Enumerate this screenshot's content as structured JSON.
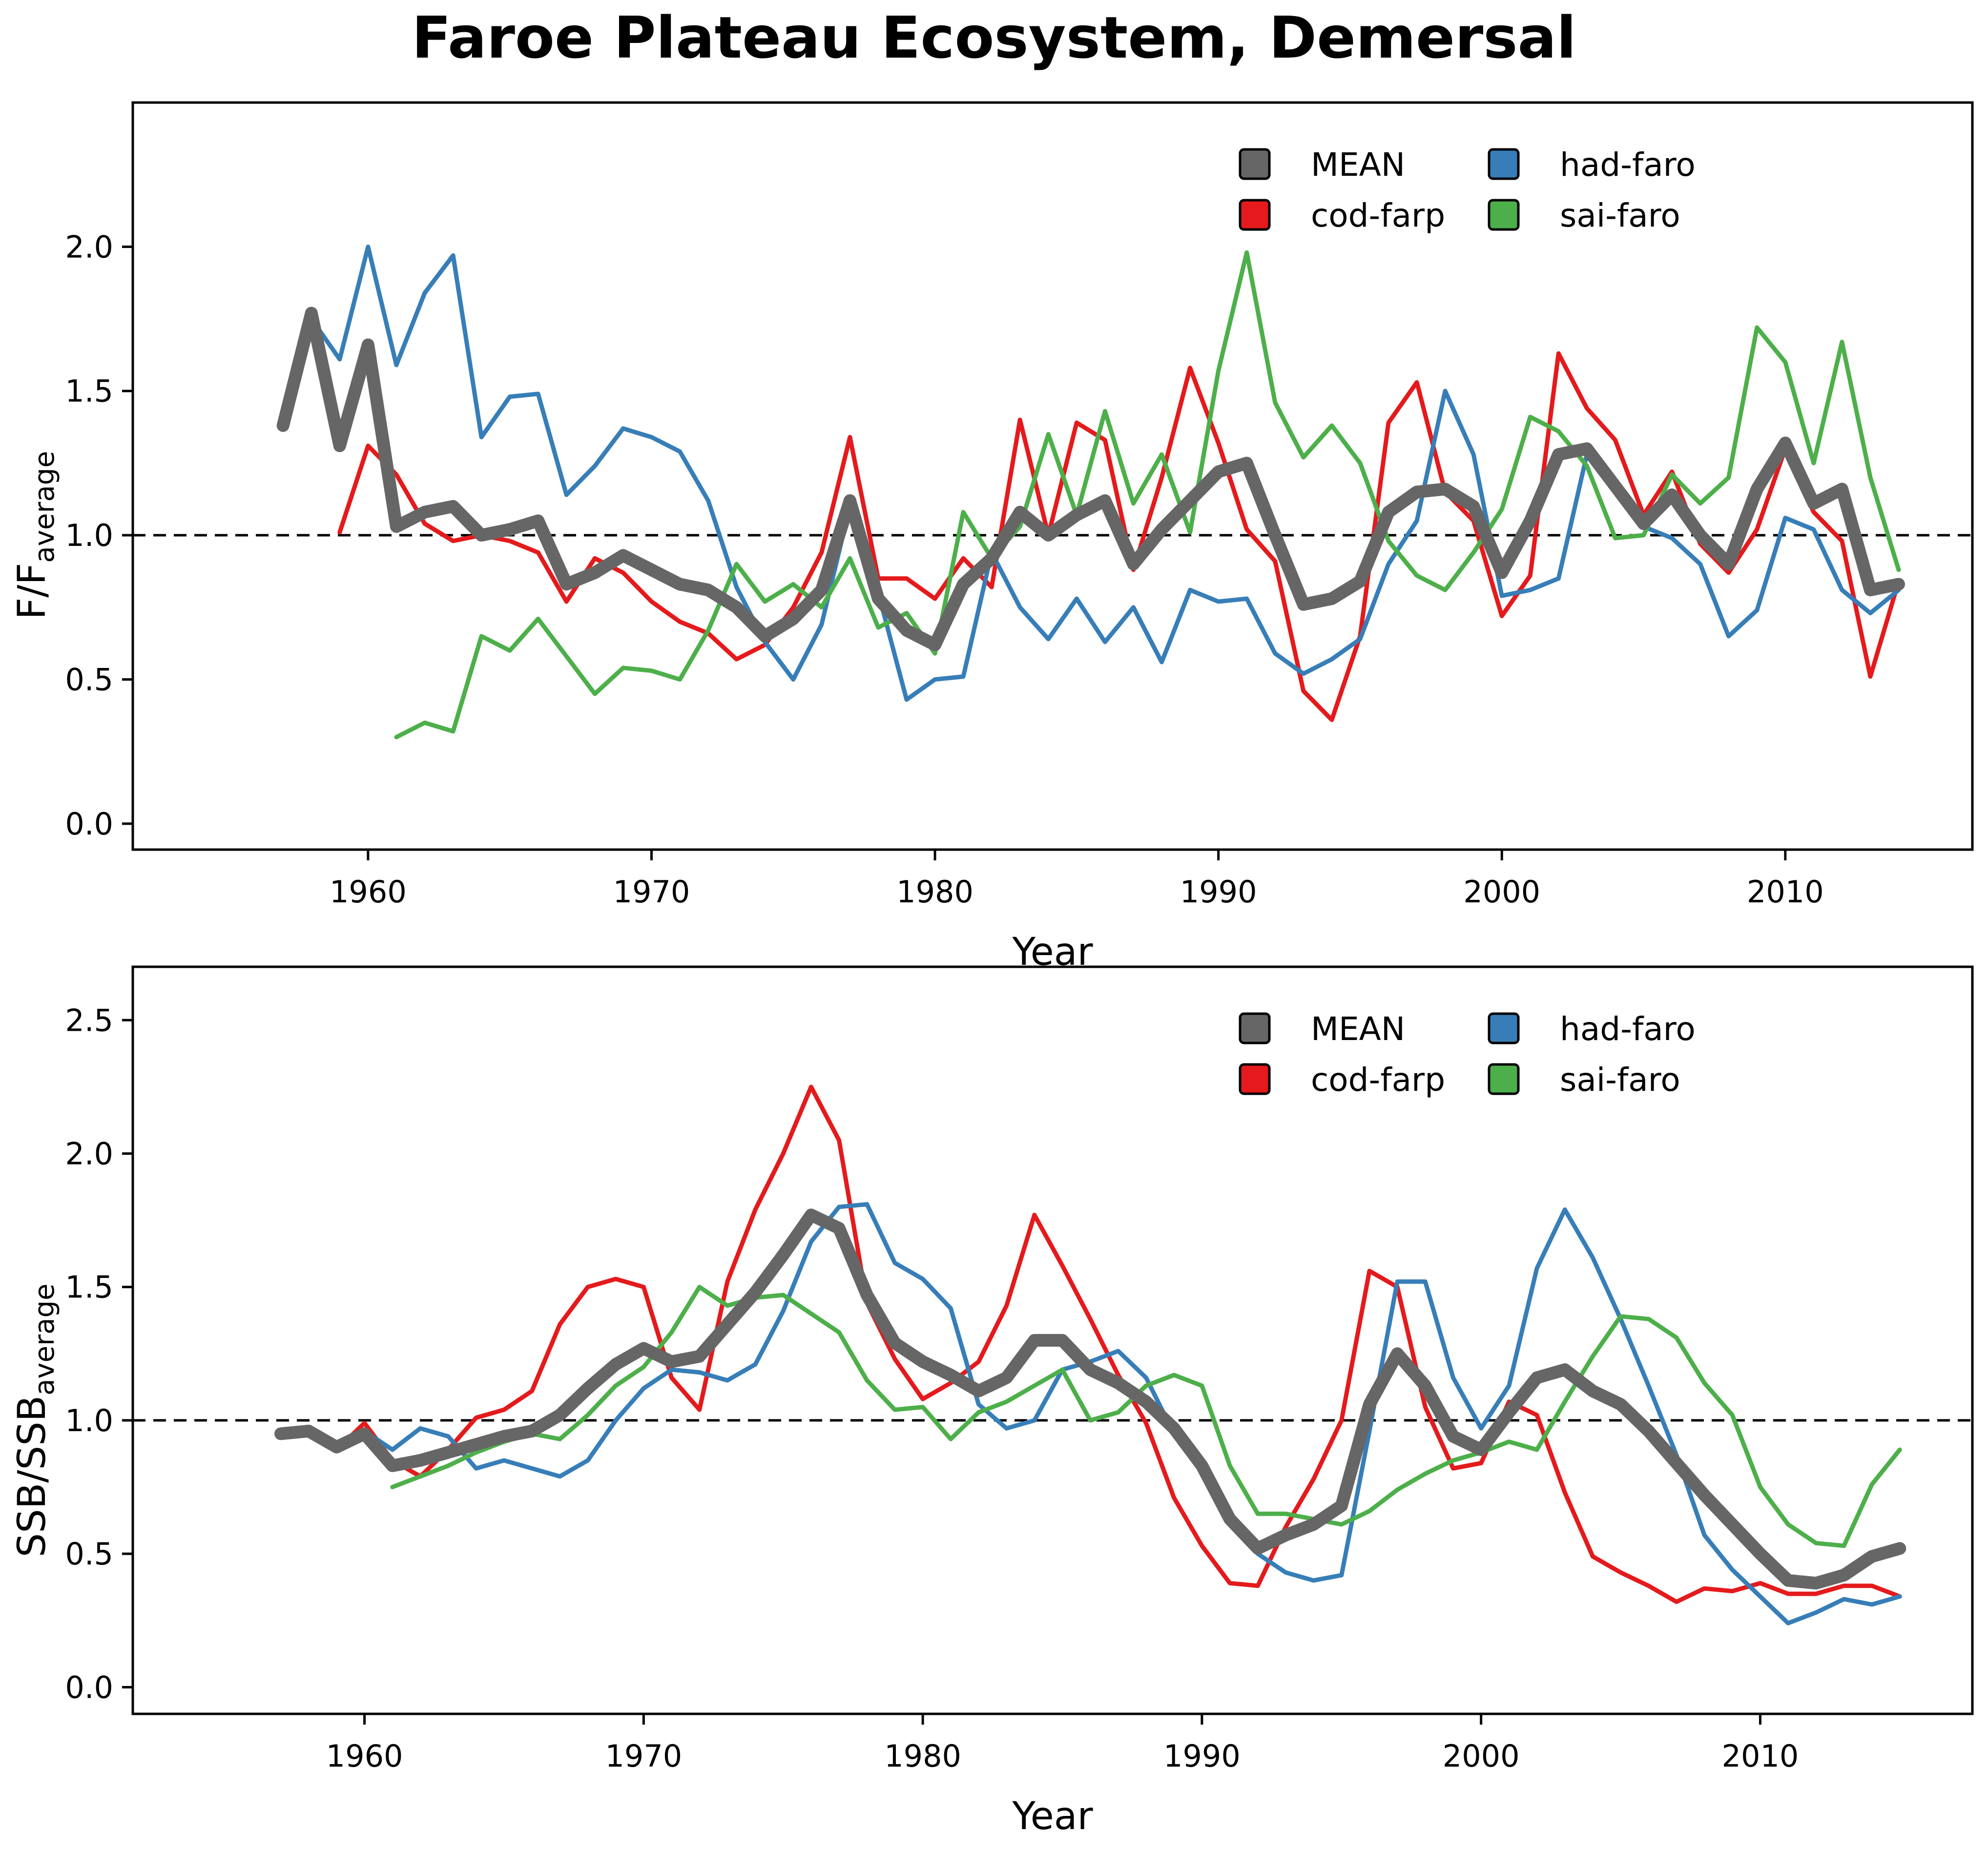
{
  "title": "Faroe Plateau Ecosystem, Demersal",
  "chart_data": [
    {
      "type": "line",
      "ylabel_main": "F/F",
      "ylabel_sub": "average",
      "xlabel": "Year",
      "xlim": [
        1951.7,
        2016.6
      ],
      "ylim": [
        -0.09,
        2.5
      ],
      "xticks": [
        1960,
        1970,
        1980,
        1990,
        2000,
        2010
      ],
      "yticks": [
        "0.0",
        "0.5",
        "1.0",
        "1.5",
        "2.0"
      ],
      "reference_line": 1.0,
      "grid": false,
      "legend_position": "top-right",
      "series": [
        {
          "name": "MEAN",
          "color": "#666666",
          "x_start": 1957,
          "values": [
            1.38,
            1.77,
            1.31,
            1.66,
            1.03,
            1.08,
            1.1,
            1.0,
            1.02,
            1.05,
            0.83,
            0.87,
            0.93,
            0.88,
            0.83,
            0.81,
            0.75,
            0.65,
            0.71,
            0.81,
            1.12,
            0.78,
            0.67,
            0.62,
            0.83,
            0.92,
            1.08,
            1.0,
            1.07,
            1.12,
            0.9,
            1.02,
            1.12,
            1.22,
            1.25,
            1.0,
            0.76,
            0.78,
            0.84,
            1.08,
            1.15,
            1.16,
            1.1,
            0.87,
            1.05,
            1.28,
            1.3,
            1.17,
            1.04,
            1.14,
            1.0,
            0.9,
            1.16,
            1.32,
            1.11,
            1.16,
            0.81,
            0.83
          ]
        },
        {
          "name": "cod-farp",
          "color": "#e41a1c",
          "x_start": 1957,
          "values": [
            null,
            null,
            1.01,
            1.31,
            1.21,
            1.04,
            0.98,
            1.0,
            0.98,
            0.94,
            0.77,
            0.92,
            0.87,
            0.77,
            0.7,
            0.66,
            0.57,
            0.62,
            0.75,
            0.94,
            1.34,
            0.85,
            0.85,
            0.78,
            0.92,
            0.82,
            1.4,
            1.0,
            1.39,
            1.33,
            0.88,
            1.2,
            1.58,
            1.32,
            1.02,
            0.91,
            0.46,
            0.36,
            0.65,
            1.39,
            1.53,
            1.15,
            1.05,
            0.72,
            0.86,
            1.63,
            1.44,
            1.33,
            1.07,
            1.22,
            0.97,
            0.87,
            1.02,
            1.3,
            1.08,
            0.98,
            0.51,
            0.84
          ]
        },
        {
          "name": "had-faro",
          "color": "#377eb8",
          "x_start": 1957,
          "values": [
            1.38,
            1.75,
            1.61,
            2.0,
            1.59,
            1.84,
            1.97,
            1.34,
            1.48,
            1.49,
            1.14,
            1.24,
            1.37,
            1.34,
            1.29,
            1.12,
            0.82,
            0.63,
            0.5,
            0.69,
            1.1,
            0.8,
            0.43,
            0.5,
            0.51,
            0.94,
            0.75,
            0.64,
            0.78,
            0.63,
            0.75,
            0.56,
            0.81,
            0.77,
            0.78,
            0.59,
            0.52,
            0.57,
            0.64,
            0.9,
            1.05,
            1.5,
            1.28,
            0.79,
            0.81,
            0.85,
            1.28,
            1.15,
            1.03,
            0.99,
            0.9,
            0.65,
            0.74,
            1.06,
            1.02,
            0.81,
            0.73,
            0.81
          ]
        },
        {
          "name": "sai-faro",
          "color": "#4daf4a",
          "x_start": 1957,
          "values": [
            null,
            null,
            null,
            null,
            0.3,
            0.35,
            0.32,
            0.65,
            0.6,
            0.71,
            0.58,
            0.45,
            0.54,
            0.53,
            0.5,
            0.67,
            0.9,
            0.77,
            0.83,
            0.75,
            0.92,
            0.68,
            0.73,
            0.59,
            1.08,
            0.92,
            1.03,
            1.35,
            1.07,
            1.43,
            1.11,
            1.28,
            1.01,
            1.57,
            1.98,
            1.46,
            1.27,
            1.38,
            1.25,
            0.98,
            0.86,
            0.81,
            0.94,
            1.09,
            1.41,
            1.36,
            1.24,
            0.99,
            1.0,
            1.21,
            1.11,
            1.2,
            1.72,
            1.6,
            1.25,
            1.67,
            1.2,
            0.88
          ]
        }
      ]
    },
    {
      "type": "line",
      "ylabel_main": "SSB/SSB",
      "ylabel_sub": "average",
      "xlabel": "Year",
      "xlim": [
        1951.7,
        2017.6
      ],
      "ylim": [
        -0.1,
        2.7
      ],
      "xticks": [
        1960,
        1970,
        1980,
        1990,
        2000,
        2010
      ],
      "yticks": [
        "0.0",
        "0.5",
        "1.0",
        "1.5",
        "2.0",
        "2.5"
      ],
      "reference_line": 1.0,
      "grid": false,
      "legend_position": "top-right",
      "series": [
        {
          "name": "MEAN",
          "color": "#666666",
          "x_start": 1957,
          "values": [
            0.95,
            0.96,
            0.9,
            0.95,
            0.83,
            0.85,
            0.88,
            0.91,
            0.94,
            0.96,
            1.02,
            1.12,
            1.21,
            1.27,
            1.22,
            1.24,
            1.36,
            1.48,
            1.62,
            1.77,
            1.72,
            1.47,
            1.29,
            1.22,
            1.17,
            1.11,
            1.16,
            1.3,
            1.3,
            1.19,
            1.14,
            1.07,
            0.97,
            0.83,
            0.63,
            0.52,
            0.57,
            0.61,
            0.68,
            1.06,
            1.25,
            1.13,
            0.94,
            0.89,
            1.03,
            1.16,
            1.19,
            1.11,
            1.06,
            0.96,
            0.84,
            0.72,
            0.61,
            0.5,
            0.4,
            0.39,
            0.42,
            0.49,
            0.52
          ]
        },
        {
          "name": "cod-farp",
          "color": "#e41a1c",
          "x_start": 1957,
          "values": [
            0.95,
            0.96,
            0.89,
            0.99,
            0.85,
            0.79,
            0.89,
            1.01,
            1.04,
            1.11,
            1.36,
            1.5,
            1.53,
            1.5,
            1.16,
            1.04,
            1.52,
            1.79,
            2.0,
            2.25,
            2.05,
            1.44,
            1.23,
            1.08,
            1.14,
            1.22,
            1.43,
            1.77,
            1.58,
            1.38,
            1.17,
            0.99,
            0.71,
            0.53,
            0.39,
            0.38,
            0.6,
            0.78,
            1.0,
            1.56,
            1.5,
            1.05,
            0.82,
            0.84,
            1.07,
            1.02,
            0.73,
            0.49,
            0.43,
            0.38,
            0.32,
            0.37,
            0.36,
            0.39,
            0.35,
            0.35,
            0.38,
            0.38,
            0.34
          ]
        },
        {
          "name": "had-faro",
          "color": "#377eb8",
          "x_start": 1957,
          "values": [
            0.95,
            0.96,
            0.9,
            0.96,
            0.89,
            0.97,
            0.94,
            0.82,
            0.85,
            0.82,
            0.79,
            0.85,
            1.0,
            1.12,
            1.19,
            1.18,
            1.15,
            1.21,
            1.41,
            1.67,
            1.8,
            1.81,
            1.59,
            1.53,
            1.42,
            1.06,
            0.97,
            1.0,
            1.19,
            1.22,
            1.26,
            1.16,
            0.95,
            0.82,
            0.63,
            0.5,
            0.43,
            0.4,
            0.42,
            0.96,
            1.52,
            1.52,
            1.16,
            0.97,
            1.13,
            1.57,
            1.79,
            1.61,
            1.38,
            1.13,
            0.87,
            0.57,
            0.44,
            0.34,
            0.24,
            0.28,
            0.33,
            0.31,
            0.34
          ]
        },
        {
          "name": "sai-faro",
          "color": "#4daf4a",
          "x_start": 1957,
          "values": [
            null,
            null,
            null,
            null,
            0.75,
            0.79,
            0.83,
            0.88,
            0.92,
            0.95,
            0.93,
            1.02,
            1.13,
            1.2,
            1.33,
            1.5,
            1.43,
            1.46,
            1.47,
            1.4,
            1.33,
            1.15,
            1.04,
            1.05,
            0.93,
            1.03,
            1.07,
            1.13,
            1.19,
            1.0,
            1.03,
            1.13,
            1.17,
            1.13,
            0.83,
            0.65,
            0.65,
            0.63,
            0.61,
            0.66,
            0.74,
            0.8,
            0.85,
            0.88,
            0.92,
            0.89,
            1.07,
            1.24,
            1.39,
            1.38,
            1.31,
            1.14,
            1.02,
            0.75,
            0.61,
            0.54,
            0.53,
            0.76,
            0.89
          ]
        }
      ]
    }
  ]
}
